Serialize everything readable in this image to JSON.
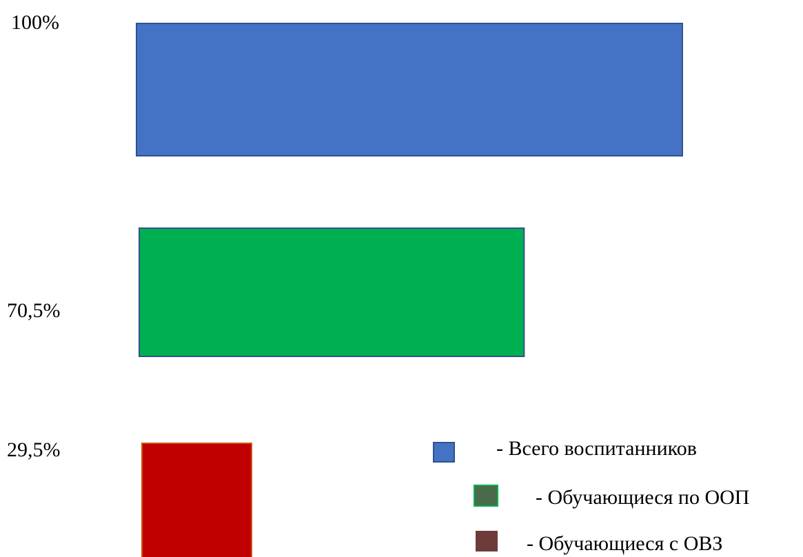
{
  "chart_data": {
    "type": "bar",
    "orientation": "horizontal",
    "categories": [
      "Всего воспитанников",
      "Обучающиеся по ООП",
      "Обучающиеся с ОВЗ"
    ],
    "values": [
      100,
      70.5,
      29.5
    ],
    "value_labels": [
      "100%",
      "70,5%",
      "29,5%"
    ],
    "bar_colors": [
      "#4472C4",
      "#00B050",
      "#C00000"
    ],
    "bar_border_colors": [
      "#2F528F",
      "#2F528F",
      "#C55A11"
    ],
    "xlim": [
      0,
      100
    ],
    "legend_position": "bottom-right"
  },
  "legend": {
    "items": [
      {
        "text": "- Всего воспитанников",
        "swatch_color": "#4472C4",
        "swatch_border": "#2F528F"
      },
      {
        "text": "- Обучающиеся по ООП",
        "swatch_color": "#4A6B4A",
        "swatch_border": "#00B050"
      },
      {
        "text": "- Обучающиеся с ОВЗ",
        "swatch_color": "#6E3B3B",
        "swatch_border": "#6E3B3B"
      }
    ]
  }
}
